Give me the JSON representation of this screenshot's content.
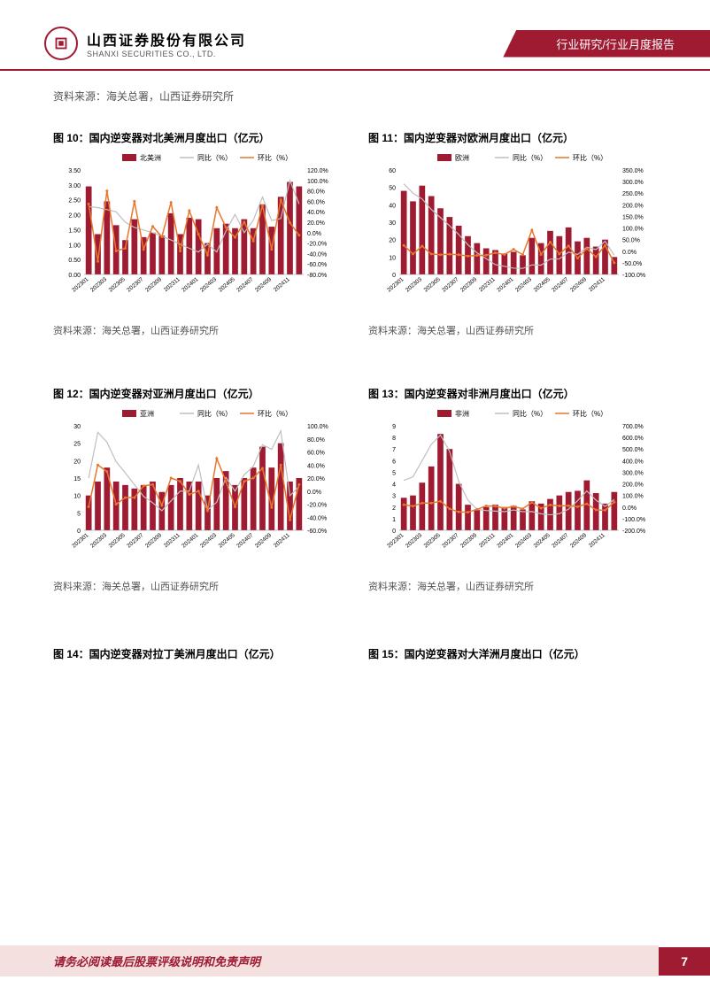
{
  "header": {
    "company_cn": "山西证券股份有限公司",
    "company_en": "SHANXI SECURITIES CO., LTD.",
    "breadcrumb": "行业研究/行业月度报告"
  },
  "source_top": "资料来源：海关总署，山西证券研究所",
  "charts": {
    "c10": {
      "title": "图 10：国内逆变器对北美洲月度出口（亿元）",
      "series_name": "北美洲",
      "yoy_name": "同比（%）",
      "mom_name": "环比（%）",
      "categories": [
        "202301",
        "202302",
        "202303",
        "202304",
        "202305",
        "202306",
        "202307",
        "202308",
        "202309",
        "202310",
        "202311",
        "202312",
        "202401",
        "202402",
        "202403",
        "202404",
        "202405",
        "202406",
        "202407",
        "202408",
        "202409",
        "202410",
        "202411",
        "202412"
      ],
      "bar_values": [
        2.95,
        1.35,
        2.45,
        1.65,
        1.15,
        1.85,
        1.25,
        1.4,
        1.3,
        2.05,
        1.35,
        1.9,
        1.85,
        1.05,
        1.55,
        1.7,
        1.55,
        1.85,
        1.55,
        2.35,
        1.6,
        2.6,
        3.1,
        2.95
      ],
      "mom_values": [
        55,
        -55,
        80,
        -35,
        -30,
        60,
        -32,
        12,
        -8,
        58,
        -35,
        42,
        -3,
        -43,
        48,
        10,
        -9,
        20,
        -16,
        52,
        -32,
        63,
        19,
        -5
      ],
      "yoy_values": [
        50,
        48,
        44,
        40,
        20,
        10,
        5,
        0,
        -7,
        -14,
        -22,
        -30,
        -37,
        -22,
        -37,
        3,
        35,
        0,
        24,
        68,
        23,
        27,
        100,
        55
      ],
      "y1_min": 0,
      "y1_max": 3.5,
      "y1_step": 0.5,
      "y2_min": -80,
      "y2_max": 120,
      "y2_step": 20,
      "bar_color": "#9e1b32",
      "mom_color": "#e8762c",
      "yoy_color": "#bfbfbf",
      "source": "资料来源：海关总署，山西证券研究所"
    },
    "c11": {
      "title": "图 11：国内逆变器对欧洲月度出口（亿元）",
      "series_name": "欧洲",
      "yoy_name": "同比（%）",
      "mom_name": "环比（%）",
      "categories": [
        "202301",
        "202302",
        "202303",
        "202304",
        "202305",
        "202306",
        "202307",
        "202308",
        "202309",
        "202310",
        "202311",
        "202312",
        "202401",
        "202402",
        "202403",
        "202404",
        "202405",
        "202406",
        "202407",
        "202408",
        "202409",
        "202410",
        "202411",
        "202412"
      ],
      "bar_values": [
        48,
        42,
        51,
        45,
        38,
        33,
        28,
        22,
        18,
        15,
        14,
        12,
        13,
        11,
        21,
        18,
        25,
        22,
        27,
        19,
        21,
        16,
        20,
        10
      ],
      "mom_values": [
        25,
        -12,
        22,
        -12,
        -15,
        -13,
        -15,
        -21,
        -18,
        -17,
        -7,
        -14,
        8,
        -15,
        91,
        -14,
        39,
        -12,
        23,
        -30,
        11,
        -24,
        25,
        -50
      ],
      "yoy_values": [
        290,
        250,
        225,
        180,
        145,
        110,
        72,
        28,
        -7,
        -32,
        -58,
        -65,
        -73,
        -74,
        -59,
        -60,
        -34,
        -33,
        -4,
        -14,
        17,
        7,
        43,
        -17
      ],
      "y1_min": 0,
      "y1_max": 60,
      "y1_step": 10,
      "y2_min": -100,
      "y2_max": 350,
      "y2_step": 50,
      "bar_color": "#9e1b32",
      "mom_color": "#e8762c",
      "yoy_color": "#bfbfbf",
      "source": "资料来源：海关总署，山西证券研究所"
    },
    "c12": {
      "title": "图 12：国内逆变器对亚洲月度出口（亿元）",
      "series_name": "亚洲",
      "yoy_name": "同比（%）",
      "mom_name": "环比（%）",
      "categories": [
        "202301",
        "202302",
        "202303",
        "202304",
        "202305",
        "202306",
        "202307",
        "202308",
        "202309",
        "202310",
        "202311",
        "202312",
        "202401",
        "202402",
        "202403",
        "202404",
        "202405",
        "202406",
        "202407",
        "202408",
        "202409",
        "202410",
        "202411",
        "202412"
      ],
      "bar_values": [
        10,
        14,
        18,
        14,
        13,
        12,
        13,
        14,
        11,
        13,
        15,
        14,
        14,
        10,
        15,
        17,
        13,
        15,
        18,
        24,
        18,
        25,
        14,
        15
      ],
      "mom_values": [
        -24,
        40,
        30,
        -20,
        -10,
        -10,
        8,
        10,
        -22,
        20,
        15,
        -5,
        0,
        -30,
        50,
        15,
        -24,
        15,
        20,
        35,
        -25,
        40,
        -44,
        10
      ],
      "yoy_values": [
        20,
        90,
        75,
        45,
        28,
        10,
        -8,
        -18,
        -30,
        -15,
        0,
        0,
        40,
        -29,
        -17,
        21,
        0,
        25,
        38,
        71,
        64,
        92,
        -7,
        7
      ],
      "y1_min": 0,
      "y1_max": 30,
      "y1_step": 5,
      "y2_min": -60,
      "y2_max": 100,
      "y2_step": 20,
      "bar_color": "#9e1b32",
      "mom_color": "#e8762c",
      "yoy_color": "#bfbfbf",
      "source": "资料来源：海关总署，山西证券研究所"
    },
    "c13": {
      "title": "图 13：国内逆变器对非洲月度出口（亿元）",
      "series_name": "非洲",
      "yoy_name": "同比（%）",
      "mom_name": "环比（%）",
      "categories": [
        "202301",
        "202302",
        "202303",
        "202304",
        "202305",
        "202306",
        "202307",
        "202308",
        "202309",
        "202310",
        "202311",
        "202312",
        "202401",
        "202402",
        "202403",
        "202404",
        "202405",
        "202406",
        "202407",
        "202408",
        "202409",
        "202410",
        "202411",
        "202412"
      ],
      "bar_values": [
        2.8,
        3.0,
        4.1,
        5.5,
        8.3,
        7.0,
        4.0,
        2.2,
        1.8,
        2.0,
        2.2,
        2.0,
        2.1,
        1.8,
        2.5,
        2.3,
        2.7,
        3.0,
        3.3,
        3.4,
        4.3,
        3.2,
        2.3,
        3.3
      ],
      "mom_values": [
        20,
        8,
        35,
        35,
        50,
        -15,
        -42,
        -45,
        -20,
        10,
        8,
        -10,
        5,
        -15,
        40,
        -10,
        18,
        10,
        12,
        3,
        28,
        -25,
        -27,
        43
      ],
      "yoy_values": [
        230,
        260,
        400,
        540,
        620,
        480,
        220,
        60,
        -20,
        -30,
        -35,
        -40,
        -25,
        -40,
        -39,
        -58,
        -67,
        -57,
        -18,
        55,
        139,
        60,
        5,
        65
      ],
      "y1_min": 0,
      "y1_max": 9,
      "y1_step": 1,
      "y2_min": -200,
      "y2_max": 700,
      "y2_step": 100,
      "bar_color": "#9e1b32",
      "mom_color": "#e8762c",
      "yoy_color": "#bfbfbf",
      "source": "资料来源：海关总署，山西证券研究所"
    },
    "c14": {
      "title": "图 14：国内逆变器对拉丁美洲月度出口（亿元）"
    },
    "c15": {
      "title": "图 15：国内逆变器对大洋洲月度出口（亿元）"
    }
  },
  "footer": {
    "disclaimer": "请务必阅读最后股票评级说明和免责声明",
    "page_number": "7"
  },
  "colors": {
    "primary": "#9e1b32",
    "accent": "#e8762c",
    "grey": "#bfbfbf",
    "footer_bg": "#f5e0e0"
  }
}
